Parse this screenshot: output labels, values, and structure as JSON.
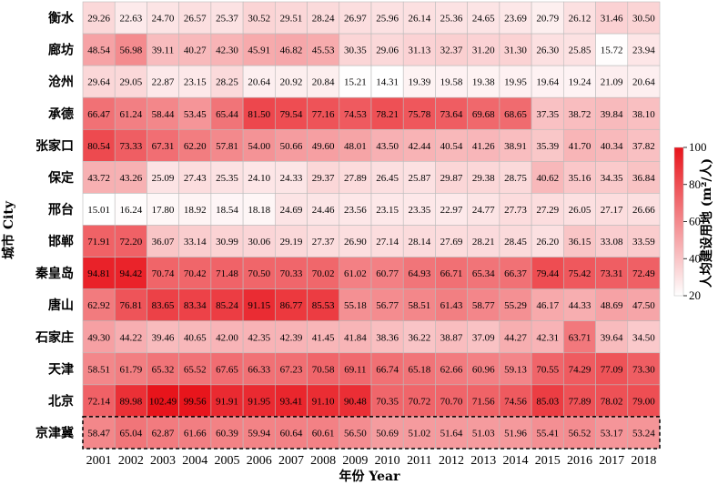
{
  "chart_data": {
    "type": "heatmap",
    "xlabel": "年份 Year",
    "ylabel": "城市 City",
    "colorbar_label": "人均建设用地 (m²/人)",
    "colorbar_ticks": [
      "100",
      "80",
      "60",
      "40",
      "20"
    ],
    "zlim": [
      15,
      100
    ],
    "colors": {
      "low": "#ffffff",
      "high": "#e8141b",
      "grid": "#bbbbbb",
      "highlight_border": "#000000"
    },
    "highlighted_row": "京津冀",
    "x": [
      "2001",
      "2002",
      "2003",
      "2004",
      "2005",
      "2006",
      "2007",
      "2008",
      "2009",
      "2010",
      "2011",
      "2012",
      "2013",
      "2014",
      "2015",
      "2016",
      "2017",
      "2018"
    ],
    "y": [
      "衡水",
      "廊坊",
      "沧州",
      "承德",
      "张家口",
      "保定",
      "邢台",
      "邯郸",
      "秦皇岛",
      "唐山",
      "石家庄",
      "天津",
      "北京",
      "京津冀"
    ],
    "values": [
      [
        "29.26",
        "22.63",
        "24.70",
        "26.57",
        "25.37",
        "30.52",
        "29.51",
        "28.24",
        "26.97",
        "25.96",
        "26.14",
        "25.36",
        "24.65",
        "23.69",
        "20.79",
        "26.12",
        "31.46",
        "30.50"
      ],
      [
        "48.54",
        "56.98",
        "39.11",
        "40.27",
        "42.30",
        "45.91",
        "46.82",
        "45.53",
        "30.35",
        "29.06",
        "31.13",
        "32.37",
        "31.20",
        "31.30",
        "26.30",
        "25.85",
        "15.72",
        "23.94"
      ],
      [
        "29.64",
        "29.05",
        "22.87",
        "23.15",
        "28.25",
        "20.64",
        "20.92",
        "20.84",
        "15.21",
        "14.31",
        "19.39",
        "19.58",
        "19.38",
        "19.95",
        "19.64",
        "19.24",
        "21.09",
        "20.64"
      ],
      [
        "66.47",
        "61.24",
        "58.44",
        "53.45",
        "65.44",
        "81.50",
        "79.54",
        "77.16",
        "74.53",
        "78.21",
        "75.78",
        "73.64",
        "69.68",
        "68.65",
        "37.35",
        "38.72",
        "39.84",
        "38.10"
      ],
      [
        "80.54",
        "73.33",
        "67.31",
        "62.20",
        "57.81",
        "54.00",
        "50.66",
        "49.60",
        "48.01",
        "43.50",
        "42.44",
        "40.54",
        "41.26",
        "38.91",
        "35.39",
        "41.70",
        "40.34",
        "37.82"
      ],
      [
        "43.72",
        "43.26",
        "25.09",
        "27.43",
        "25.35",
        "24.10",
        "24.33",
        "29.37",
        "27.89",
        "26.45",
        "25.87",
        "29.87",
        "29.38",
        "28.75",
        "40.62",
        "35.16",
        "34.35",
        "36.84"
      ],
      [
        "15.01",
        "16.24",
        "17.80",
        "18.92",
        "18.54",
        "18.18",
        "24.69",
        "24.46",
        "23.56",
        "23.15",
        "23.35",
        "22.97",
        "24.77",
        "27.73",
        "27.29",
        "26.05",
        "27.17",
        "26.66"
      ],
      [
        "71.91",
        "72.20",
        "36.07",
        "33.14",
        "30.99",
        "30.06",
        "29.19",
        "27.37",
        "26.90",
        "27.14",
        "28.14",
        "27.69",
        "28.21",
        "28.45",
        "26.20",
        "36.15",
        "33.08",
        "33.59"
      ],
      [
        "94.81",
        "94.42",
        "70.74",
        "70.42",
        "71.48",
        "70.50",
        "70.33",
        "70.02",
        "61.02",
        "60.77",
        "64.93",
        "66.71",
        "65.34",
        "66.37",
        "79.44",
        "75.42",
        "73.31",
        "72.49"
      ],
      [
        "62.92",
        "76.81",
        "83.65",
        "83.34",
        "85.24",
        "91.15",
        "86.77",
        "85.53",
        "55.18",
        "56.77",
        "58.51",
        "61.43",
        "58.77",
        "55.29",
        "46.17",
        "44.33",
        "48.69",
        "47.50"
      ],
      [
        "49.30",
        "44.22",
        "39.46",
        "40.65",
        "42.00",
        "42.35",
        "42.39",
        "41.45",
        "41.84",
        "38.36",
        "36.22",
        "38.87",
        "37.09",
        "44.27",
        "42.31",
        "63.71",
        "39.64",
        "34.50"
      ],
      [
        "58.51",
        "61.79",
        "65.32",
        "65.52",
        "67.65",
        "66.33",
        "67.23",
        "70.58",
        "69.11",
        "66.74",
        "65.18",
        "62.66",
        "60.96",
        "59.13",
        "70.55",
        "74.29",
        "77.09",
        "73.30"
      ],
      [
        "72.14",
        "89.98",
        "102.49",
        "99.56",
        "91.91",
        "91.95",
        "93.41",
        "91.10",
        "90.48",
        "70.35",
        "70.72",
        "70.70",
        "71.56",
        "74.56",
        "85.03",
        "77.89",
        "78.02",
        "79.00"
      ],
      [
        "58.47",
        "65.04",
        "62.87",
        "61.66",
        "60.39",
        "59.94",
        "60.64",
        "60.61",
        "56.50",
        "50.69",
        "51.02",
        "51.64",
        "51.03",
        "51.96",
        "55.41",
        "56.52",
        "53.17",
        "53.24"
      ]
    ]
  }
}
